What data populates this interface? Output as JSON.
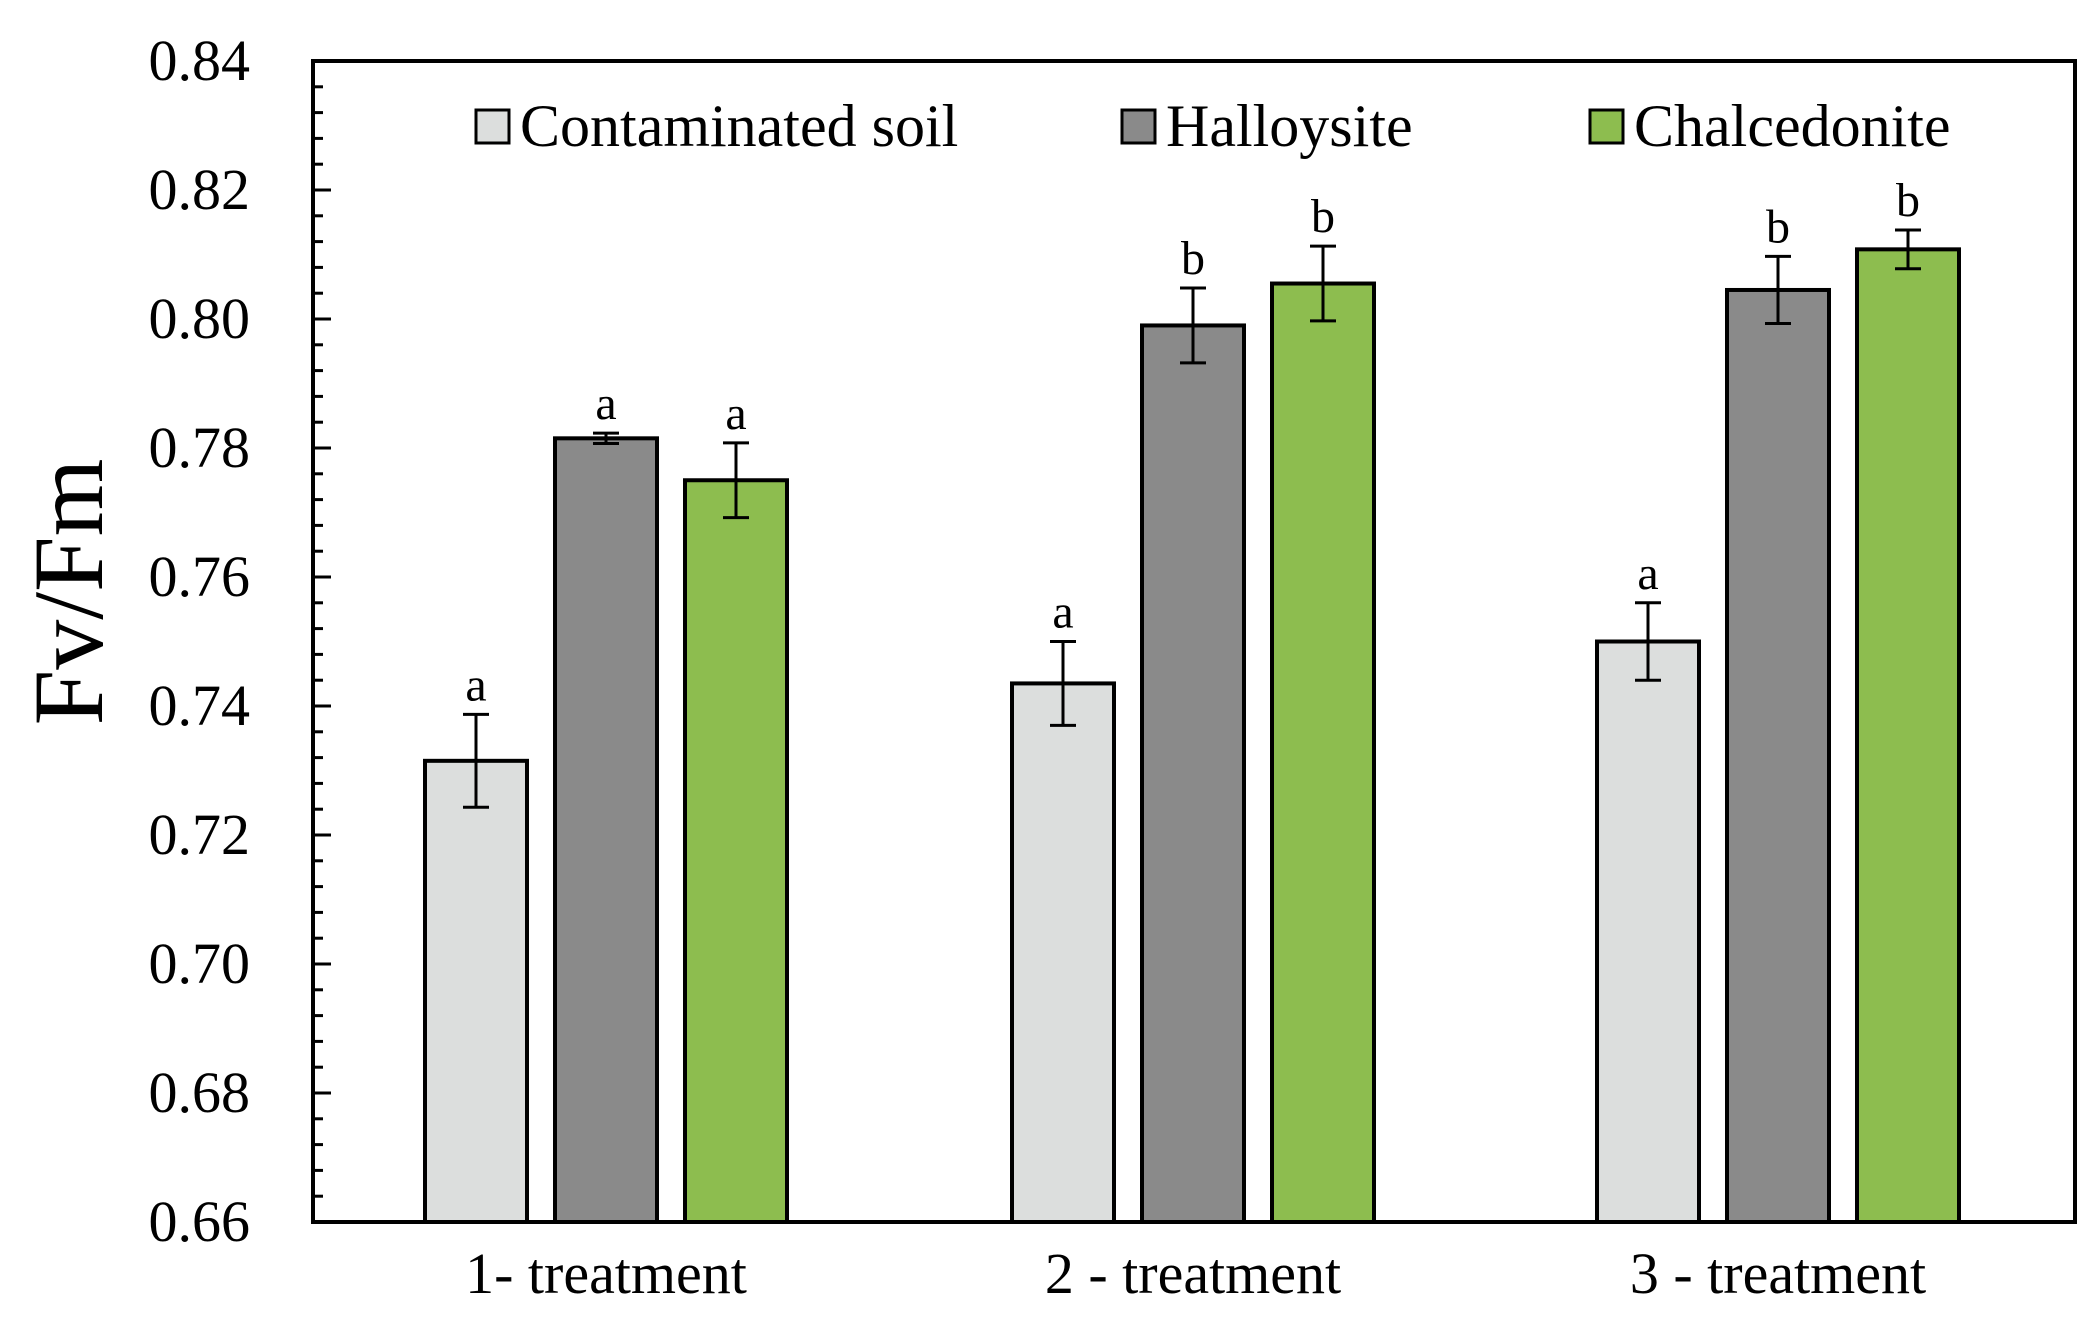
{
  "chart_data": {
    "type": "bar",
    "title": "",
    "xlabel": "",
    "ylabel": "Fv/Fm",
    "ylim": [
      0.66,
      0.84
    ],
    "ytick_labels": [
      "0.66",
      "0.68",
      "0.70",
      "0.72",
      "0.74",
      "0.76",
      "0.78",
      "0.80",
      "0.82",
      "0.84"
    ],
    "grid": false,
    "legend_position": "top",
    "categories": [
      "1- treatment",
      "2 - treatment",
      "3 - treatment"
    ],
    "series": [
      {
        "name": "Contaminated soil",
        "color": "#dcdedd",
        "values": [
          0.7315,
          0.7435,
          0.75
        ],
        "errors": [
          0.0072,
          0.0065,
          0.006
        ],
        "labels": [
          "a",
          "a",
          "a"
        ]
      },
      {
        "name": "Halloysite",
        "color": "#8a8a8a",
        "values": [
          0.7815,
          0.799,
          0.8045
        ],
        "errors": [
          0.0008,
          0.0058,
          0.0052
        ],
        "labels": [
          "a",
          "b",
          "b"
        ]
      },
      {
        "name": "Chalcedonite",
        "color": "#8dbd4f",
        "values": [
          0.775,
          0.8055,
          0.8108
        ],
        "errors": [
          0.0058,
          0.0058,
          0.003
        ],
        "labels": [
          "a",
          "b",
          "b"
        ]
      }
    ]
  }
}
